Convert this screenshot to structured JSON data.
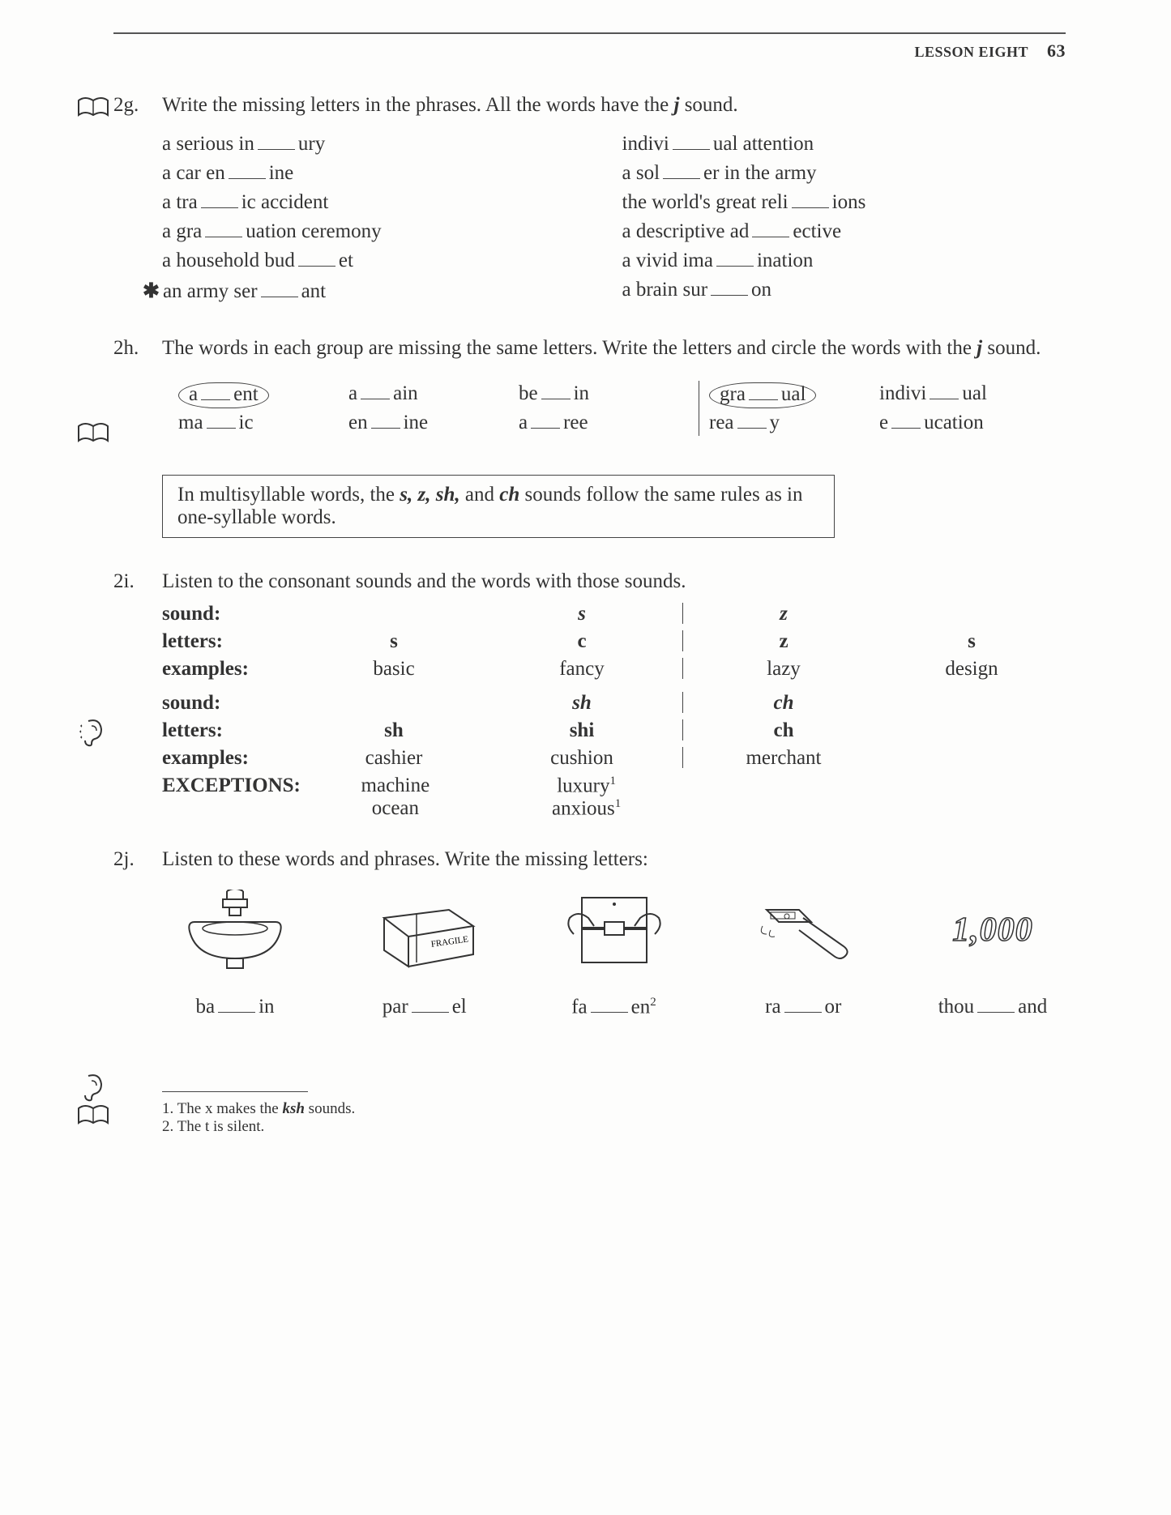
{
  "header": {
    "lesson": "LESSON EIGHT",
    "page": "63"
  },
  "ex2g": {
    "number": "2g.",
    "instruction_pre": "Write the missing letters in the phrases. All the words have the ",
    "instruction_sound": "j",
    "instruction_post": " sound.",
    "left": [
      {
        "pre": "a serious in",
        "post": "ury"
      },
      {
        "pre": "a car en",
        "post": "ine"
      },
      {
        "pre": "a tra",
        "post": "ic accident"
      },
      {
        "pre": "a gra",
        "post": "uation ceremony"
      },
      {
        "pre": "a household bud",
        "post": "et"
      },
      {
        "star": "✱",
        "pre": "an army ser",
        "post": "ant"
      }
    ],
    "right": [
      {
        "pre": "indivi",
        "post": "ual attention"
      },
      {
        "pre": "a sol",
        "post": "er in the army"
      },
      {
        "pre": "the world's great reli",
        "post": "ions"
      },
      {
        "pre": "a descriptive ad",
        "post": "ective"
      },
      {
        "pre": "a vivid ima",
        "post": "ination"
      },
      {
        "pre": "a brain sur",
        "post": "on"
      }
    ]
  },
  "ex2h": {
    "number": "2h.",
    "instruction_pre": "The words in each group are missing the same letters. Write the letters and circle the words with the ",
    "instruction_sound": "j",
    "instruction_post": " sound.",
    "row1": [
      {
        "pre": "a",
        "post": "ent",
        "circled": true
      },
      {
        "pre": "a",
        "post": "ain"
      },
      {
        "pre": "be",
        "post": "in"
      },
      {
        "pre": "gra",
        "post": "ual",
        "circled": true
      },
      {
        "pre": "indivi",
        "post": "ual"
      }
    ],
    "row2": [
      {
        "pre": "ma",
        "post": "ic"
      },
      {
        "pre": "en",
        "post": "ine"
      },
      {
        "pre": "a",
        "post": "ree"
      },
      {
        "pre": "rea",
        "post": "y"
      },
      {
        "pre": "e",
        "post": "ucation"
      }
    ]
  },
  "rulebox": {
    "pre": "In multisyllable words, the ",
    "s1": "s, z, sh,",
    "mid": " and ",
    "s2": "ch",
    "post": " sounds follow the same rules as in one-syllable words."
  },
  "ex2i": {
    "number": "2i.",
    "instruction": "Listen to the consonant sounds and the words with those sounds.",
    "label_sound": "sound:",
    "label_letters": "letters:",
    "label_examples": "examples:",
    "label_exceptions": "EXCEPTIONS:",
    "block1": {
      "sound_left": "s",
      "sound_right": "z",
      "letters": [
        "s",
        "c",
        "z",
        "s"
      ],
      "examples": [
        "basic",
        "fancy",
        "lazy",
        "design"
      ]
    },
    "block2": {
      "sound_left": "sh",
      "sound_right": "ch",
      "letters": [
        "sh",
        "shi",
        "ch",
        ""
      ],
      "examples": [
        "cashier",
        "cushion",
        "merchant",
        ""
      ],
      "exceptions_a": [
        "machine",
        "ocean"
      ],
      "exceptions_b1": "luxury",
      "exceptions_b2": "anxious",
      "sup": "1"
    }
  },
  "ex2j": {
    "number": "2j.",
    "instruction": "Listen to these words and phrases. Write the missing letters:",
    "items": [
      {
        "pre": "ba",
        "post": "in"
      },
      {
        "pre": "par",
        "post": "el"
      },
      {
        "pre": "fa",
        "post": "en",
        "sup": "2"
      },
      {
        "pre": "ra",
        "post": "or"
      },
      {
        "pre": "thou",
        "post": "and"
      }
    ],
    "thousand": "1,000",
    "fragile": "FRAGILE"
  },
  "footnotes": {
    "f1_pre": "1. The x makes the ",
    "f1_b": "ksh",
    "f1_post": " sounds.",
    "f2": "2. The t is silent."
  }
}
